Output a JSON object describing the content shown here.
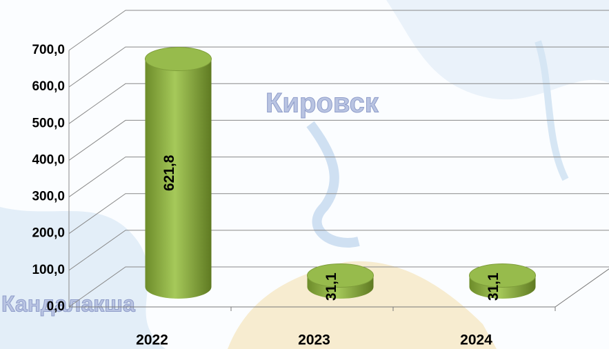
{
  "chart_data": {
    "type": "bar3d",
    "categories": [
      "2022",
      "2023",
      "2024"
    ],
    "values": [
      621.8,
      31.1,
      31.1
    ],
    "value_labels": [
      "621,8",
      "31,1",
      "31,1"
    ],
    "color": "#8db043",
    "ylim": [
      0,
      700
    ],
    "yticks": [
      {
        "value": 0,
        "label": "0,0"
      },
      {
        "value": 100,
        "label": "100,0"
      },
      {
        "value": 200,
        "label": "200,0"
      },
      {
        "value": 300,
        "label": "300,0"
      },
      {
        "value": 400,
        "label": "400,0"
      },
      {
        "value": 500,
        "label": "500,0"
      },
      {
        "value": 600,
        "label": "600,0"
      },
      {
        "value": 700,
        "label": "700,0"
      }
    ],
    "grid": true
  },
  "map_labels": [
    "Кировск",
    "Кандалакша"
  ]
}
